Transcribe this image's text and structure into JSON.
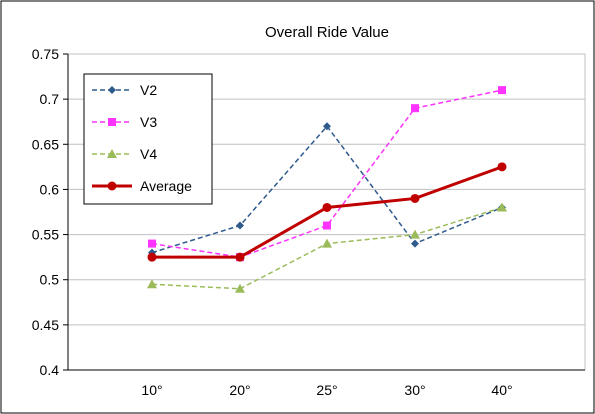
{
  "chart_data": {
    "type": "line",
    "title": "Overall Ride Value",
    "xlabel": "",
    "ylabel": "",
    "categories": [
      "10°",
      "20°",
      "25°",
      "30°",
      "40°"
    ],
    "ylim": [
      0.4,
      0.75
    ],
    "yticks": [
      "0.4",
      "0.45",
      "0.5",
      "0.55",
      "0.6",
      "0.65",
      "0.7",
      "0.75"
    ],
    "grid": true,
    "legend_position": "top-left",
    "series": [
      {
        "name": "V2",
        "values": [
          0.53,
          0.56,
          0.67,
          0.54,
          0.58
        ],
        "color": "#2e5a8c",
        "dash": "dashed",
        "marker": "diamond"
      },
      {
        "name": "V3",
        "values": [
          0.54,
          0.525,
          0.56,
          0.69,
          0.71
        ],
        "color": "#ff33ff",
        "dash": "dashed",
        "marker": "square"
      },
      {
        "name": "V4",
        "values": [
          0.495,
          0.49,
          0.54,
          0.55,
          0.58
        ],
        "color": "#9bbb59",
        "dash": "dashed",
        "marker": "triangle"
      },
      {
        "name": "Average",
        "values": [
          0.525,
          0.525,
          0.58,
          0.59,
          0.625
        ],
        "color": "#c00000",
        "dash": "solid",
        "marker": "circle"
      }
    ]
  }
}
